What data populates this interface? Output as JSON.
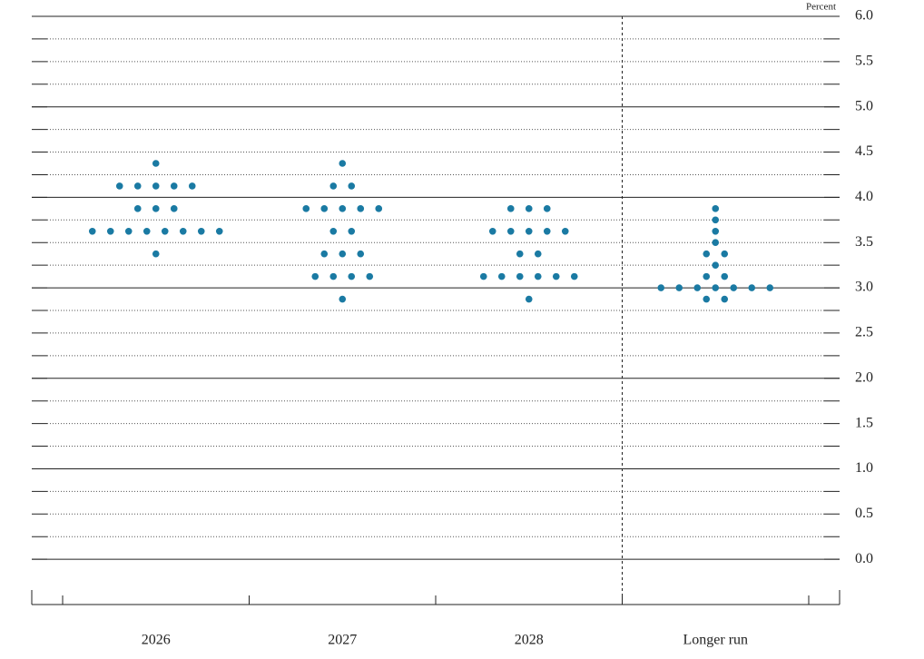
{
  "chart_data": {
    "type": "dot",
    "unit_label": "Percent",
    "categories": [
      "2026",
      "2027",
      "2028",
      "Longer run"
    ],
    "values": [
      [
        4.375,
        4.125,
        4.125,
        4.125,
        4.125,
        4.125,
        3.875,
        3.875,
        3.875,
        3.625,
        3.625,
        3.625,
        3.625,
        3.625,
        3.625,
        3.625,
        3.625,
        3.375
      ],
      [
        4.375,
        4.125,
        4.125,
        3.875,
        3.875,
        3.875,
        3.875,
        3.875,
        3.625,
        3.625,
        3.375,
        3.375,
        3.375,
        3.125,
        3.125,
        3.125,
        3.125,
        2.875
      ],
      [
        3.875,
        3.875,
        3.875,
        3.625,
        3.625,
        3.625,
        3.625,
        3.625,
        3.375,
        3.375,
        3.125,
        3.125,
        3.125,
        3.125,
        3.125,
        3.125,
        2.875
      ],
      [
        3.875,
        3.75,
        3.625,
        3.5,
        3.375,
        3.375,
        3.25,
        3.125,
        3.125,
        3.0,
        3.0,
        3.0,
        3.0,
        3.0,
        3.0,
        3.0,
        2.875,
        2.875
      ]
    ],
    "color": "#1a7aa3",
    "ylim": [
      -0.5,
      6.0
    ],
    "yticks": [
      {
        "value": 0,
        "label": "0.0"
      },
      0.5,
      {
        "value": 1,
        "label": "1.0"
      },
      1.5,
      {
        "value": 2,
        "label": "2.0"
      },
      2.5,
      {
        "value": 3,
        "label": "3.0"
      },
      3.5,
      {
        "value": 4,
        "label": "4.0"
      },
      4.5,
      {
        "value": 5,
        "label": "5.0"
      },
      5.5,
      {
        "value": 6,
        "label": "6.0"
      }
    ],
    "minor_yticks": [
      0.25,
      0.75,
      1.25,
      1.75,
      2.25,
      2.75,
      3.25,
      3.75,
      4.25,
      4.75,
      5.25,
      5.75
    ],
    "grid": true
  }
}
